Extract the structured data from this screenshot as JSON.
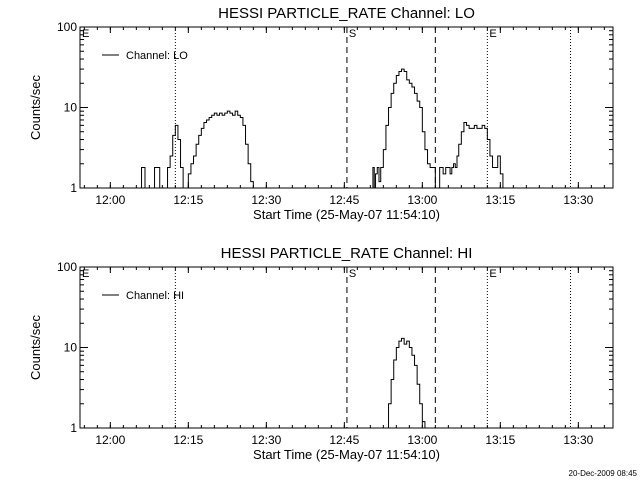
{
  "footer_stamp": "20-Dec-2009 08:45",
  "chart_data": [
    {
      "type": "line",
      "title": "HESSI PARTICLE_RATE Channel: LO",
      "xlabel": "Start Time (25-May-07 11:54:10)",
      "ylabel": "Counts/sec",
      "y_scale": "log",
      "ylim": [
        1,
        100
      ],
      "xlim": [
        "11:54:10",
        "13:36:40"
      ],
      "x_ticks": [
        "12:00",
        "12:15",
        "12:30",
        "12:45",
        "13:00",
        "13:15",
        "13:30"
      ],
      "y_ticks": [
        "1",
        "10",
        "100"
      ],
      "grid": false,
      "legend": {
        "position": "top-left",
        "entries": [
          "Channel: LO"
        ]
      },
      "markers": [
        {
          "label": "E",
          "time": "11:54:10",
          "style": "dotted"
        },
        {
          "label": "",
          "time": "12:12:30",
          "style": "dotted"
        },
        {
          "label": "S",
          "time": "12:45:30",
          "style": "dashed"
        },
        {
          "label": "",
          "time": "13:02:30",
          "style": "dashed"
        },
        {
          "label": "E",
          "time": "13:12:30",
          "style": "dotted"
        },
        {
          "label": "",
          "time": "13:28:30",
          "style": "dotted"
        }
      ],
      "series": [
        {
          "name": "Channel: LO",
          "x": [
            "12:05:30",
            "12:06:00",
            "12:06:30",
            "12:06:40",
            "12:07:00",
            "12:08:20",
            "12:08:30",
            "12:09:00",
            "12:09:30",
            "12:10:30",
            "12:11:00",
            "12:11:30",
            "12:12:00",
            "12:12:30",
            "12:13:00",
            "12:13:30",
            "12:14:00",
            "12:14:30",
            "12:15:00",
            "12:15:30",
            "12:16:00",
            "12:16:30",
            "12:17:00",
            "12:17:30",
            "12:18:00",
            "12:18:30",
            "12:19:00",
            "12:19:30",
            "12:20:00",
            "12:20:30",
            "12:21:00",
            "12:21:30",
            "12:22:00",
            "12:22:30",
            "12:23:00",
            "12:23:30",
            "12:24:00",
            "12:24:30",
            "12:25:00",
            "12:25:30",
            "12:26:00",
            "12:26:30",
            "12:27:00",
            "12:27:30",
            "12:50:00",
            "12:50:30",
            "12:50:45",
            "12:51:00",
            "12:51:20",
            "12:51:40",
            "12:52:00",
            "12:52:30",
            "12:53:00",
            "12:53:30",
            "12:54:00",
            "12:54:30",
            "12:55:00",
            "12:55:30",
            "12:56:00",
            "12:56:30",
            "12:57:00",
            "12:57:30",
            "12:58:00",
            "12:58:30",
            "12:59:00",
            "12:59:30",
            "13:00:00",
            "13:00:30",
            "13:01:00",
            "13:01:30",
            "13:02:00",
            "13:02:30",
            "13:03:00",
            "13:03:20",
            "13:03:40",
            "13:04:00",
            "13:04:30",
            "13:05:00",
            "13:05:20",
            "13:05:40",
            "13:06:00",
            "13:06:20",
            "13:06:40",
            "13:07:00",
            "13:07:30",
            "13:08:00",
            "13:08:30",
            "13:09:00",
            "13:09:30",
            "13:10:00",
            "13:10:30",
            "13:11:00",
            "13:11:30",
            "13:12:00",
            "13:12:30",
            "13:13:00",
            "13:13:30",
            "13:14:00",
            "13:14:30",
            "13:15:00",
            "13:15:30"
          ],
          "y": [
            1,
            1.8,
            1.8,
            1,
            1,
            1,
            1.8,
            1.8,
            1,
            1,
            1.8,
            2.5,
            4.5,
            6,
            4,
            1.8,
            1,
            1,
            1.5,
            2,
            2.5,
            3.5,
            4.5,
            5.5,
            6.5,
            7,
            7.5,
            8,
            8.5,
            8,
            8.5,
            8,
            8.5,
            9,
            8.5,
            8,
            9,
            8,
            7.5,
            6,
            3.5,
            2,
            1.2,
            1,
            1,
            1.8,
            1,
            1.5,
            1.8,
            1.2,
            1.8,
            3,
            6,
            10,
            15,
            20,
            25,
            28,
            30,
            28,
            22,
            20,
            18,
            15,
            12,
            10,
            5,
            3,
            2,
            1.8,
            1.8,
            1,
            1,
            1.8,
            1.8,
            1.5,
            1.8,
            1.8,
            1.5,
            1.8,
            2,
            1.8,
            2.5,
            3.5,
            5,
            6.5,
            6,
            5.5,
            5.5,
            6,
            5.5,
            5.5,
            6,
            5.5,
            4,
            2.5,
            1.8,
            1.8,
            2.5,
            1.5,
            1
          ]
        }
      ]
    },
    {
      "type": "line",
      "title": "HESSI PARTICLE_RATE Channel: HI",
      "xlabel": "Start Time (25-May-07 11:54:10)",
      "ylabel": "Counts/sec",
      "y_scale": "log",
      "ylim": [
        1,
        100
      ],
      "xlim": [
        "11:54:10",
        "13:36:40"
      ],
      "x_ticks": [
        "12:00",
        "12:15",
        "12:30",
        "12:45",
        "13:00",
        "13:15",
        "13:30"
      ],
      "y_ticks": [
        "1",
        "10",
        "100"
      ],
      "grid": false,
      "legend": {
        "position": "top-left",
        "entries": [
          "Channel: HI"
        ]
      },
      "markers": [
        {
          "label": "E",
          "time": "11:54:10",
          "style": "dotted"
        },
        {
          "label": "",
          "time": "12:12:30",
          "style": "dotted"
        },
        {
          "label": "S",
          "time": "12:45:30",
          "style": "dashed"
        },
        {
          "label": "",
          "time": "13:02:30",
          "style": "dashed"
        },
        {
          "label": "E",
          "time": "13:12:30",
          "style": "dotted"
        },
        {
          "label": "",
          "time": "13:28:30",
          "style": "dotted"
        }
      ],
      "series": [
        {
          "name": "Channel: HI",
          "x": [
            "12:53:00",
            "12:53:30",
            "12:54:00",
            "12:54:30",
            "12:55:00",
            "12:55:30",
            "12:56:00",
            "12:56:30",
            "12:57:00",
            "12:57:30",
            "12:58:00",
            "12:58:30",
            "12:59:00",
            "12:59:30",
            "13:00:00",
            "13:00:30"
          ],
          "y": [
            1,
            2,
            4,
            7,
            10,
            12,
            13,
            11,
            12,
            10,
            8,
            6,
            3.5,
            2,
            1.2,
            1
          ]
        }
      ]
    }
  ]
}
